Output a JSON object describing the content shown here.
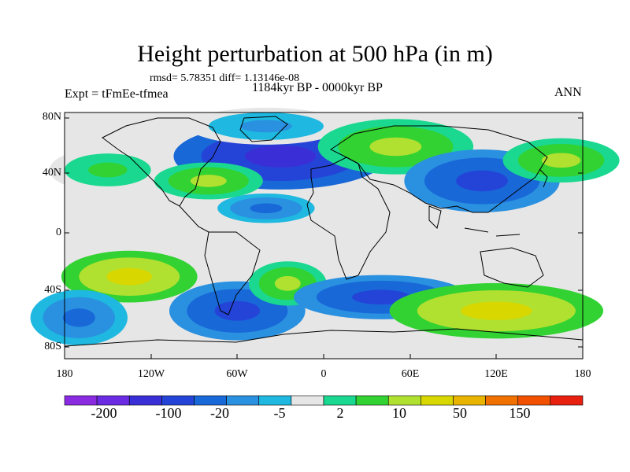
{
  "title": "Height perturbation at 500 hPa (in m)",
  "stats_line": "rmsd= 5.78351 diff= 1.13146e-08",
  "expt_label": "Expt = tFmEe-tfmea",
  "period_label": "1184kyr BP - 0000kyr BP",
  "season_label": "ANN",
  "lat_ticks": [
    "80N",
    "40N",
    "0",
    "40S",
    "80S"
  ],
  "lon_ticks": [
    "180",
    "120W",
    "60W",
    "0",
    "60E",
    "120E",
    "180"
  ],
  "colorbar": {
    "colors": [
      "#8a2be2",
      "#6a2be2",
      "#3a2fd6",
      "#2444d8",
      "#1868d8",
      "#2a90e0",
      "#1eb8e0",
      "#e6e6e6",
      "#1ad890",
      "#32d232",
      "#b0e030",
      "#d8d800",
      "#e8b400",
      "#f07000",
      "#f05000",
      "#e82010"
    ],
    "label_texts": [
      "-200",
      "-100",
      "-20",
      "-5",
      "2",
      "10",
      "50",
      "150"
    ]
  },
  "chart_data": {
    "type": "map",
    "variable": "500 hPa geopotential height perturbation (m)",
    "projection": "cylindrical equidistant",
    "lon_range": [
      -180,
      180
    ],
    "lat_range": [
      -90,
      90
    ],
    "levels": [
      -200,
      -150,
      -100,
      -50,
      -20,
      -10,
      -5,
      -2,
      2,
      5,
      10,
      20,
      50,
      100,
      150
    ],
    "anomalies": [
      {
        "name": "north-atlantic-europe-low",
        "lon": -30,
        "lat": 58,
        "rx": 55,
        "ry": 18,
        "value": -25,
        "color_index": 3
      },
      {
        "name": "arctic-low",
        "lon": -40,
        "lat": 80,
        "rx": 40,
        "ry": 10,
        "value": -8,
        "color_index": 6
      },
      {
        "name": "siberia-high",
        "lon": 50,
        "lat": 65,
        "rx": 40,
        "ry": 15,
        "value": 15,
        "color_index": 9
      },
      {
        "name": "north-pacific-high",
        "lon": -150,
        "lat": 48,
        "rx": 30,
        "ry": 12,
        "value": 8,
        "color_index": 8
      },
      {
        "name": "north-america-high",
        "lon": -80,
        "lat": 40,
        "rx": 28,
        "ry": 10,
        "value": 12,
        "color_index": 9
      },
      {
        "name": "east-asia-low",
        "lon": 110,
        "lat": 40,
        "rx": 40,
        "ry": 17,
        "value": -20,
        "color_index": 4
      },
      {
        "name": "west-pacific-high",
        "lon": 165,
        "lat": 55,
        "rx": 30,
        "ry": 12,
        "value": 14,
        "color_index": 9
      },
      {
        "name": "tropical-atlantic-low",
        "lon": -40,
        "lat": 20,
        "rx": 25,
        "ry": 8,
        "value": -6,
        "color_index": 5
      },
      {
        "name": "south-pacific-high",
        "lon": -135,
        "lat": -30,
        "rx": 35,
        "ry": 14,
        "value": 30,
        "color_index": 10
      },
      {
        "name": "south-america-low",
        "lon": -60,
        "lat": -55,
        "rx": 35,
        "ry": 16,
        "value": -20,
        "color_index": 4
      },
      {
        "name": "south-atlantic-high",
        "lon": -25,
        "lat": -35,
        "rx": 20,
        "ry": 12,
        "value": 10,
        "color_index": 9
      },
      {
        "name": "southern-ocean-low-60e",
        "lon": 40,
        "lat": -45,
        "rx": 45,
        "ry": 12,
        "value": -15,
        "color_index": 4
      },
      {
        "name": "southern-ocean-high-120e",
        "lon": 120,
        "lat": -55,
        "rx": 55,
        "ry": 15,
        "value": 40,
        "color_index": 10
      },
      {
        "name": "dateline-south-low",
        "lon": -170,
        "lat": -60,
        "rx": 25,
        "ry": 15,
        "value": -10,
        "color_index": 5
      }
    ]
  }
}
